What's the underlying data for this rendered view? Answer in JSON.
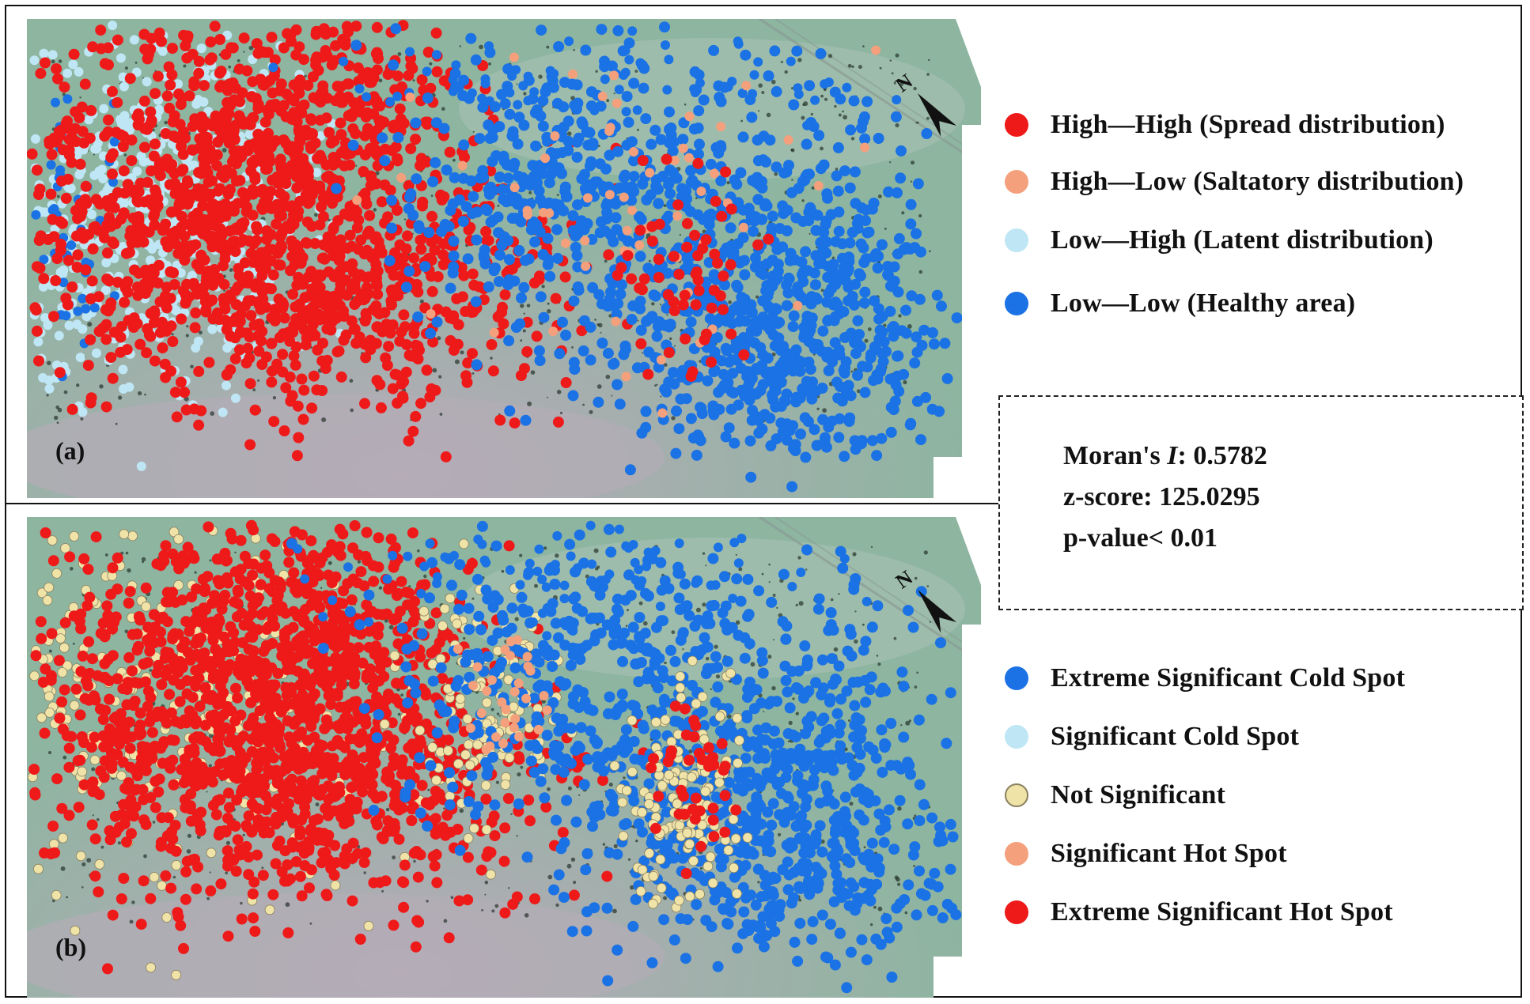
{
  "panels": [
    {
      "label": "(a)",
      "legend": [
        {
          "label": "High—High (Spread distribution)",
          "color": "#ee1a1a"
        },
        {
          "label": "High—Low (Saltatory distribution)",
          "color": "#f4a07c"
        },
        {
          "label": "Low—High (Latent distribution)",
          "color": "#bfe6f4"
        },
        {
          "label": "Low—Low (Healthy area)",
          "color": "#1a72e4"
        }
      ]
    },
    {
      "label": "(b)",
      "legend": [
        {
          "label": "Extreme Significant Cold Spot",
          "color": "#1a72e4"
        },
        {
          "label": "Significant Cold Spot",
          "color": "#bfe6f4"
        },
        {
          "label": "Not Significant",
          "color": "#efe3a8"
        },
        {
          "label": "Significant Hot Spot",
          "color": "#f4a07c"
        },
        {
          "label": "Extreme Significant Hot Spot",
          "color": "#ee1a1a"
        }
      ]
    }
  ],
  "stats": {
    "morans_prefix": "Moran's ",
    "morans_symbol": "I",
    "morans_value": ": 0.5782",
    "zscore": "z-score: 125.0295",
    "pvalue": "p-value< 0.01"
  },
  "north_arrow": {
    "letter": "N",
    "icon": "north-arrow-icon"
  },
  "colors": {
    "background_grass": "#8fb3a0",
    "bare_soil": "#b5aeb6",
    "high_high": "#ee1a1a",
    "high_low": "#f4a07c",
    "low_high": "#bfe6f4",
    "low_low": "#1a72e4",
    "not_significant": "#efe3a8"
  }
}
